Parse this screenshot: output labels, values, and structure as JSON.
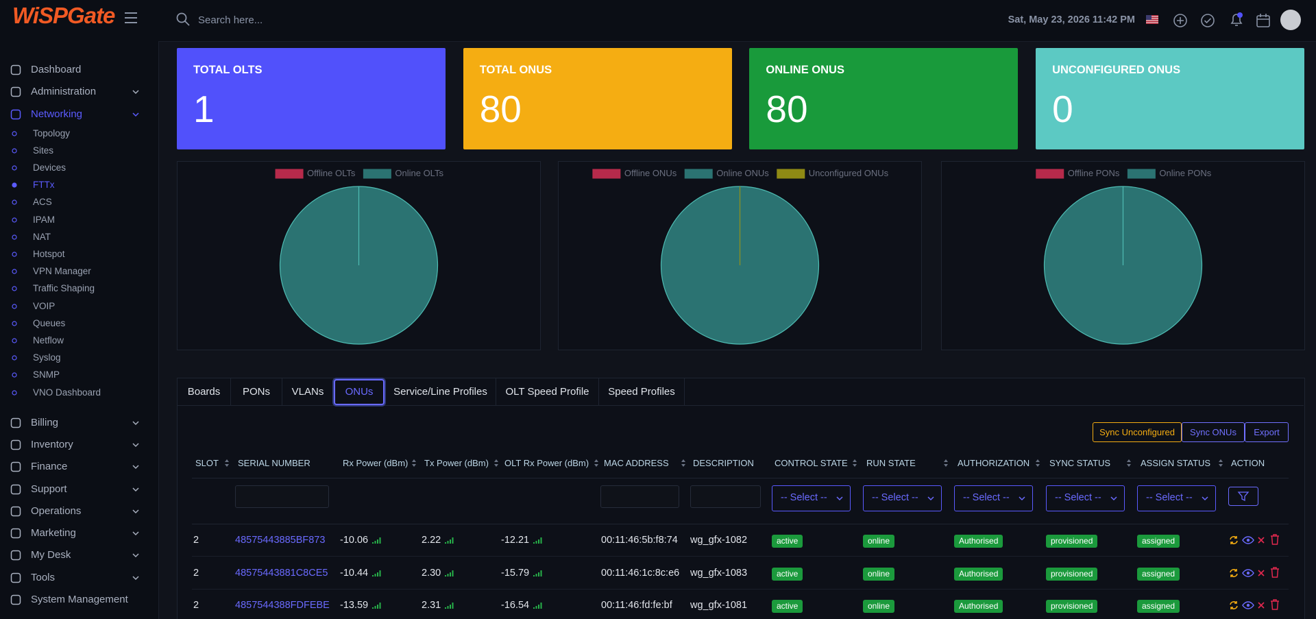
{
  "brand": "WiSPGate",
  "search_placeholder": "Search here...",
  "datetime": "Sat, May 23, 2026 11:42 PM",
  "menu": [
    {
      "label": "Dashboard"
    },
    {
      "label": "Administration",
      "chevron": true
    },
    {
      "label": "Networking",
      "chevron": true,
      "active": true,
      "items": [
        {
          "label": "Topology"
        },
        {
          "label": "Sites"
        },
        {
          "label": "Devices"
        },
        {
          "label": "FTTx",
          "active": true
        },
        {
          "label": "ACS"
        },
        {
          "label": "IPAM"
        },
        {
          "label": "NAT"
        },
        {
          "label": "Hotspot"
        },
        {
          "label": "VPN Manager"
        },
        {
          "label": "Traffic Shaping"
        },
        {
          "label": "VOIP"
        },
        {
          "label": "Queues"
        },
        {
          "label": "Netflow"
        },
        {
          "label": "Syslog"
        },
        {
          "label": "SNMP"
        },
        {
          "label": "VNO Dashboard"
        }
      ]
    },
    {
      "label": "Billing",
      "chevron": true
    },
    {
      "label": "Inventory",
      "chevron": true
    },
    {
      "label": "Finance",
      "chevron": true
    },
    {
      "label": "Support",
      "chevron": true
    },
    {
      "label": "Operations",
      "chevron": true
    },
    {
      "label": "Marketing",
      "chevron": true
    },
    {
      "label": "My Desk",
      "chevron": true
    },
    {
      "label": "Tools",
      "chevron": true
    },
    {
      "label": "System Management"
    }
  ],
  "cards": [
    {
      "title": "TOTAL OLTS",
      "value": 1,
      "color": "#5151fb"
    },
    {
      "title": "TOTAL ONUS",
      "value": 80,
      "color": "#f5ad12"
    },
    {
      "title": "ONLINE ONUS",
      "value": 80,
      "color": "#199a3b"
    },
    {
      "title": "UNCONFIGURED ONUS",
      "value": 0,
      "color": "#5cc9c3"
    }
  ],
  "chart_data": [
    {
      "type": "pie",
      "categories": [
        "Offline OLTs",
        "Online OLTs"
      ],
      "values": [
        0,
        1
      ],
      "colors": [
        "#b62a4b",
        "#2b7372"
      ]
    },
    {
      "type": "pie",
      "categories": [
        "Offline ONUs",
        "Online ONUs",
        "Unconfigured ONUs"
      ],
      "values": [
        0,
        80,
        0
      ],
      "colors": [
        "#b62a4b",
        "#2b7372",
        "#8f8a14"
      ]
    },
    {
      "type": "pie",
      "categories": [
        "Offline PONs",
        "Online PONs"
      ],
      "values": [
        0,
        1
      ],
      "colors": [
        "#b62a4b",
        "#2b7372"
      ]
    }
  ],
  "tabs": [
    "Boards",
    "PONs",
    "VLANs",
    "ONUs",
    "Service/Line Profiles",
    "OLT Speed Profile",
    "Speed Profiles"
  ],
  "active_tab": 3,
  "buttons": [
    "Sync Unconfigured",
    "Sync ONUs",
    "Export"
  ],
  "table": {
    "columns": [
      "SLOT",
      "SERIAL NUMBER",
      "Rx Power (dBm)",
      "Tx Power (dBm)",
      "OLT Rx Power (dBm)",
      "MAC ADDRESS",
      "DESCRIPTION",
      "CONTROL STATE",
      "RUN STATE",
      "AUTHORIZATION",
      "SYNC STATUS",
      "ASSIGN STATUS",
      "ACTION"
    ],
    "select_placeholder": "-- Select --",
    "rows": [
      [
        "2",
        "48575443885BF873",
        "-10.06",
        "2.22",
        "-12.21",
        "00:11:46:5b:f8:74",
        "wg_gfx-1082",
        "active",
        "online",
        "Authorised",
        "provisioned",
        "assigned"
      ],
      [
        "2",
        "48575443881C8CE5",
        "-10.44",
        "2.30",
        "-15.79",
        "00:11:46:1c:8c:e6",
        "wg_gfx-1083",
        "active",
        "online",
        "Authorised",
        "provisioned",
        "assigned"
      ],
      [
        "2",
        "4857544388FDFEBE",
        "-13.59",
        "2.31",
        "-16.54",
        "00:11:46:fd:fe:bf",
        "wg_gfx-1081",
        "active",
        "online",
        "Authorised",
        "provisioned",
        "assigned"
      ]
    ]
  }
}
